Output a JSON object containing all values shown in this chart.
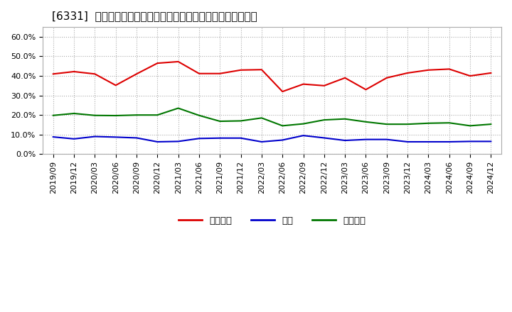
{
  "title": "[6331]  売上債権、在庫、買入債務の総資産に対する比率の推移",
  "x_labels": [
    "2019/09",
    "2019/12",
    "2020/03",
    "2020/06",
    "2020/09",
    "2020/12",
    "2021/03",
    "2021/06",
    "2021/09",
    "2021/12",
    "2022/03",
    "2022/06",
    "2022/09",
    "2022/12",
    "2023/03",
    "2023/06",
    "2023/09",
    "2023/12",
    "2024/03",
    "2024/06",
    "2024/09",
    "2024/12"
  ],
  "urikake": [
    0.41,
    0.422,
    0.41,
    0.352,
    0.41,
    0.465,
    0.473,
    0.412,
    0.412,
    0.43,
    0.432,
    0.32,
    0.358,
    0.35,
    0.39,
    0.33,
    0.39,
    0.415,
    0.43,
    0.435,
    0.4,
    0.415
  ],
  "zaiko": [
    0.088,
    0.078,
    0.09,
    0.087,
    0.083,
    0.063,
    0.065,
    0.08,
    0.082,
    0.082,
    0.063,
    0.072,
    0.095,
    0.083,
    0.07,
    0.075,
    0.075,
    0.063,
    0.063,
    0.063,
    0.065,
    0.065
  ],
  "kaiire": [
    0.198,
    0.208,
    0.198,
    0.197,
    0.2,
    0.2,
    0.235,
    0.198,
    0.168,
    0.17,
    0.185,
    0.145,
    0.155,
    0.175,
    0.18,
    0.165,
    0.153,
    0.153,
    0.158,
    0.16,
    0.145,
    0.153
  ],
  "urikake_color": "#dd0000",
  "zaiko_color": "#0000cc",
  "kaiire_color": "#007700",
  "bg_color": "#ffffff",
  "plot_bg_color": "#ffffff",
  "grid_color": "#aaaaaa",
  "ylim": [
    0.0,
    0.65
  ],
  "yticks": [
    0.0,
    0.1,
    0.2,
    0.3,
    0.4,
    0.5,
    0.6
  ],
  "legend_labels": [
    "売上債権",
    "在庫",
    "買入債務"
  ],
  "title_fontsize": 11,
  "tick_fontsize": 8,
  "legend_fontsize": 9.5
}
